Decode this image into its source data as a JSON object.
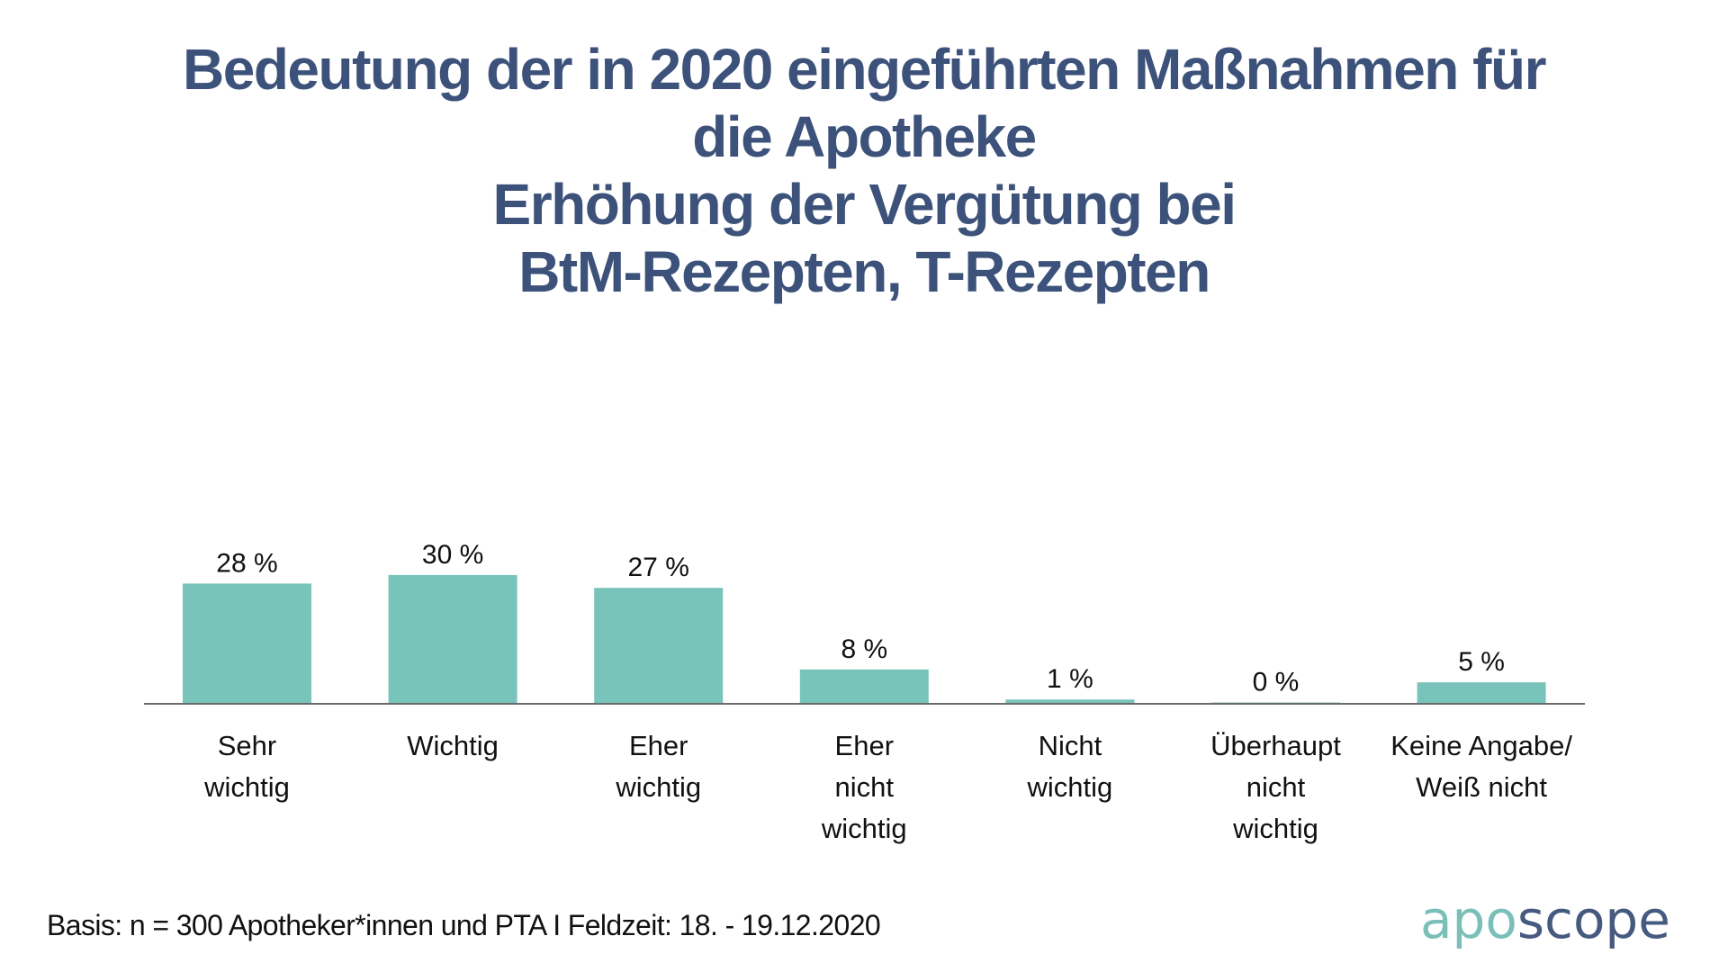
{
  "title": {
    "lines": [
      "Bedeutung der in 2020 eingeführten Maßnahmen für",
      "die Apotheke",
      "Erhöhung der Vergütung bei",
      "BtM-Rezepten, T-Rezepten"
    ]
  },
  "footer": "Basis: n = 300 Apotheker*innen und PTA I Feldzeit: 18. - 19.12.2020",
  "logo": {
    "part1": "apo",
    "part2": "scope",
    "color1": "#7abfb8",
    "color2": "#465a80"
  },
  "colors": {
    "bar": "#78c4ba",
    "axis": "#6b6b6b",
    "title": "#3d527a",
    "text": "#111111"
  },
  "chart_data": {
    "type": "bar",
    "title": "Bedeutung der in 2020 eingeführten Maßnahmen für die Apotheke – Erhöhung der Vergütung bei BtM-Rezepten, T-Rezepten",
    "xlabel": "",
    "ylabel": "",
    "ylim": [
      0,
      30
    ],
    "grid": false,
    "legend": "none",
    "categories": [
      [
        "Sehr",
        "wichtig"
      ],
      [
        "Wichtig"
      ],
      [
        "Eher",
        "wichtig"
      ],
      [
        "Eher",
        "nicht",
        "wichtig"
      ],
      [
        "Nicht",
        "wichtig"
      ],
      [
        "Überhaupt",
        "nicht",
        "wichtig"
      ],
      [
        "Keine Angabe/",
        "Weiß nicht"
      ]
    ],
    "values": [
      28,
      30,
      27,
      8,
      1,
      0,
      5
    ],
    "labels": [
      "28 %",
      "30 %",
      "27 %",
      "8 %",
      "1 %",
      "0 %",
      "5 %"
    ],
    "unit": "%"
  }
}
